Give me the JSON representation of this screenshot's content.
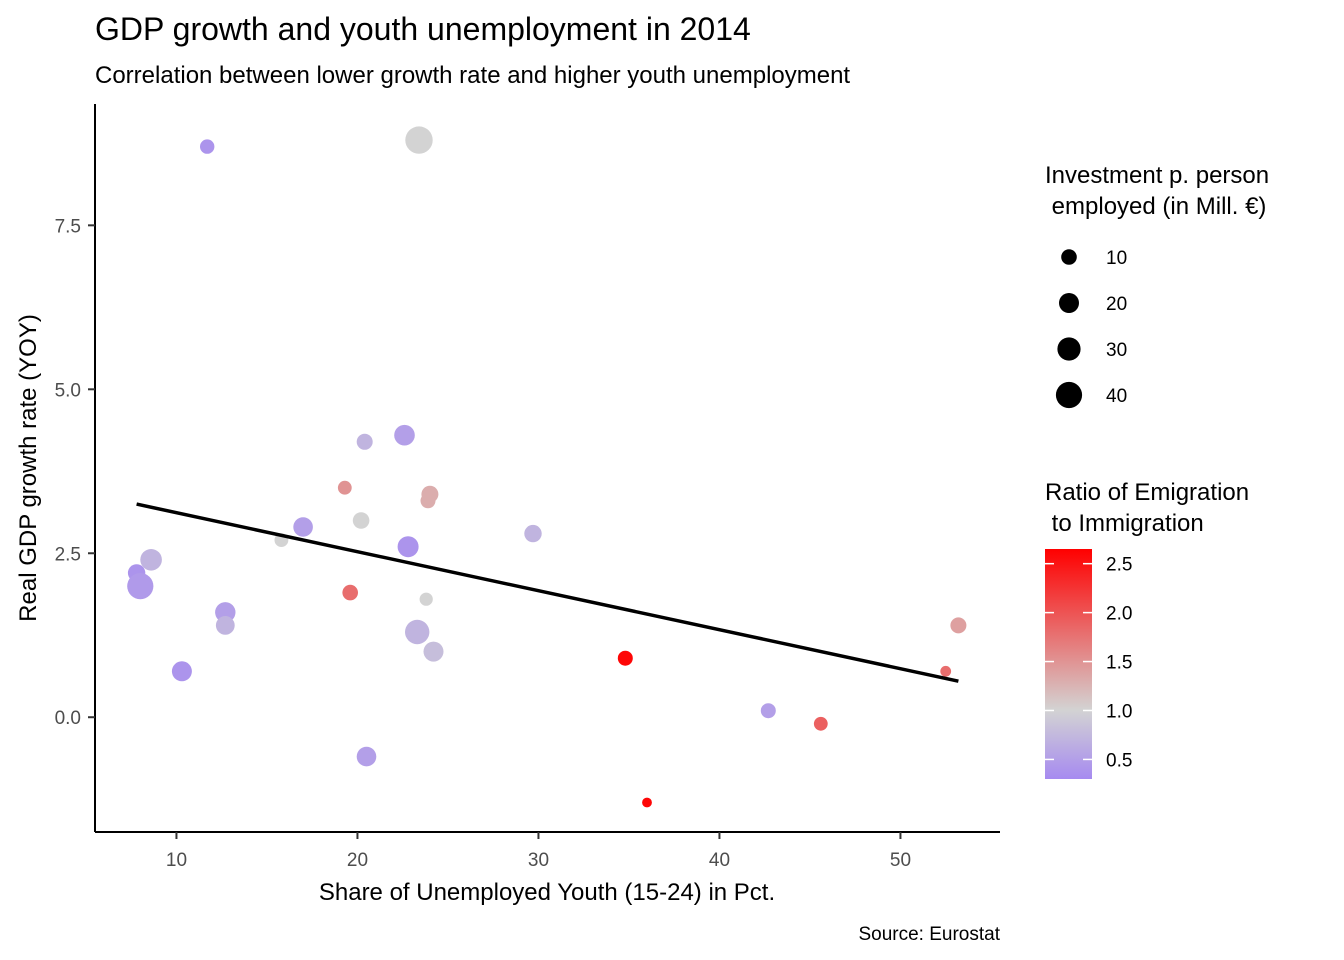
{
  "chart_data": {
    "type": "scatter",
    "title": "GDP growth and youth unemployment in 2014",
    "subtitle": "Correlation between lower growth rate and higher youth unemployment",
    "xlabel": "Share of Unemployed Youth (15-24) in Pct.",
    "ylabel": "Real GDP growth rate (YOY)",
    "caption": "Source: Eurostat",
    "xlim": [
      5.5,
      55.5
    ],
    "ylim": [
      -1.75,
      9.35
    ],
    "xticks": [
      10,
      20,
      30,
      40,
      50
    ],
    "xtick_labels": [
      "10",
      "20",
      "30",
      "40",
      "50"
    ],
    "yticks": [
      0,
      2.5,
      5,
      7.5
    ],
    "ytick_labels": [
      "0.0",
      "2.5",
      "5.0",
      "7.5"
    ],
    "grid": false,
    "trend_line": {
      "x": [
        7.8,
        53.2
      ],
      "y": [
        3.25,
        0.55
      ],
      "color": "#000000"
    },
    "size_legend": {
      "title_lines": [
        "Investment p. person",
        " employed (in Mill. €)"
      ],
      "values": [
        10,
        20,
        30,
        40
      ],
      "labels": [
        "10",
        "20",
        "30",
        "40"
      ]
    },
    "color_legend": {
      "title_lines": [
        "Ratio of Emigration",
        " to Immigration"
      ],
      "range": [
        0.3,
        2.65
      ],
      "ticks": [
        0.5,
        1.0,
        1.5,
        2.0,
        2.5
      ],
      "labels": [
        "0.5",
        "1.0",
        "1.5",
        "2.0",
        "2.5"
      ],
      "low_color": "#a68af0",
      "mid_color": "#d3d3d3",
      "high_color": "#ff0000",
      "midpoint": 1.0
    },
    "points": [
      {
        "x": 11.7,
        "y": 8.7,
        "size": 8,
        "ratio": 0.4
      },
      {
        "x": 23.4,
        "y": 8.8,
        "size": 45,
        "ratio": 1.0
      },
      {
        "x": 22.6,
        "y": 4.3,
        "size": 22,
        "ratio": 0.5
      },
      {
        "x": 20.4,
        "y": 4.2,
        "size": 11,
        "ratio": 0.7
      },
      {
        "x": 19.3,
        "y": 3.5,
        "size": 7,
        "ratio": 1.5
      },
      {
        "x": 24.0,
        "y": 3.4,
        "size": 13,
        "ratio": 1.3
      },
      {
        "x": 23.9,
        "y": 3.3,
        "size": 9,
        "ratio": 1.3
      },
      {
        "x": 20.2,
        "y": 3.0,
        "size": 12,
        "ratio": 1.0
      },
      {
        "x": 17.0,
        "y": 2.9,
        "size": 19,
        "ratio": 0.5
      },
      {
        "x": 29.7,
        "y": 2.8,
        "size": 14,
        "ratio": 0.7
      },
      {
        "x": 15.8,
        "y": 2.7,
        "size": 7,
        "ratio": 1.0
      },
      {
        "x": 22.8,
        "y": 2.6,
        "size": 23,
        "ratio": 0.4
      },
      {
        "x": 8.6,
        "y": 2.4,
        "size": 25,
        "ratio": 0.7
      },
      {
        "x": 7.8,
        "y": 2.2,
        "size": 14,
        "ratio": 0.4
      },
      {
        "x": 8.0,
        "y": 2.0,
        "size": 40,
        "ratio": 0.45
      },
      {
        "x": 19.6,
        "y": 1.9,
        "size": 10,
        "ratio": 1.8
      },
      {
        "x": 23.8,
        "y": 1.8,
        "size": 6,
        "ratio": 1.0
      },
      {
        "x": 12.7,
        "y": 1.6,
        "size": 21,
        "ratio": 0.5
      },
      {
        "x": 12.7,
        "y": 1.4,
        "size": 17,
        "ratio": 0.7
      },
      {
        "x": 53.2,
        "y": 1.4,
        "size": 11,
        "ratio": 1.4
      },
      {
        "x": 23.3,
        "y": 1.3,
        "size": 34,
        "ratio": 0.7
      },
      {
        "x": 24.2,
        "y": 1.0,
        "size": 20,
        "ratio": 0.8
      },
      {
        "x": 34.8,
        "y": 0.9,
        "size": 9,
        "ratio": 2.6
      },
      {
        "x": 10.3,
        "y": 0.7,
        "size": 20,
        "ratio": 0.4
      },
      {
        "x": 52.5,
        "y": 0.7,
        "size": 3,
        "ratio": 1.8
      },
      {
        "x": 42.7,
        "y": 0.1,
        "size": 9,
        "ratio": 0.5
      },
      {
        "x": 45.6,
        "y": -0.1,
        "size": 7,
        "ratio": 1.9
      },
      {
        "x": 20.5,
        "y": -0.6,
        "size": 19,
        "ratio": 0.5
      },
      {
        "x": 36.0,
        "y": -1.3,
        "size": 2,
        "ratio": 2.6
      }
    ]
  }
}
